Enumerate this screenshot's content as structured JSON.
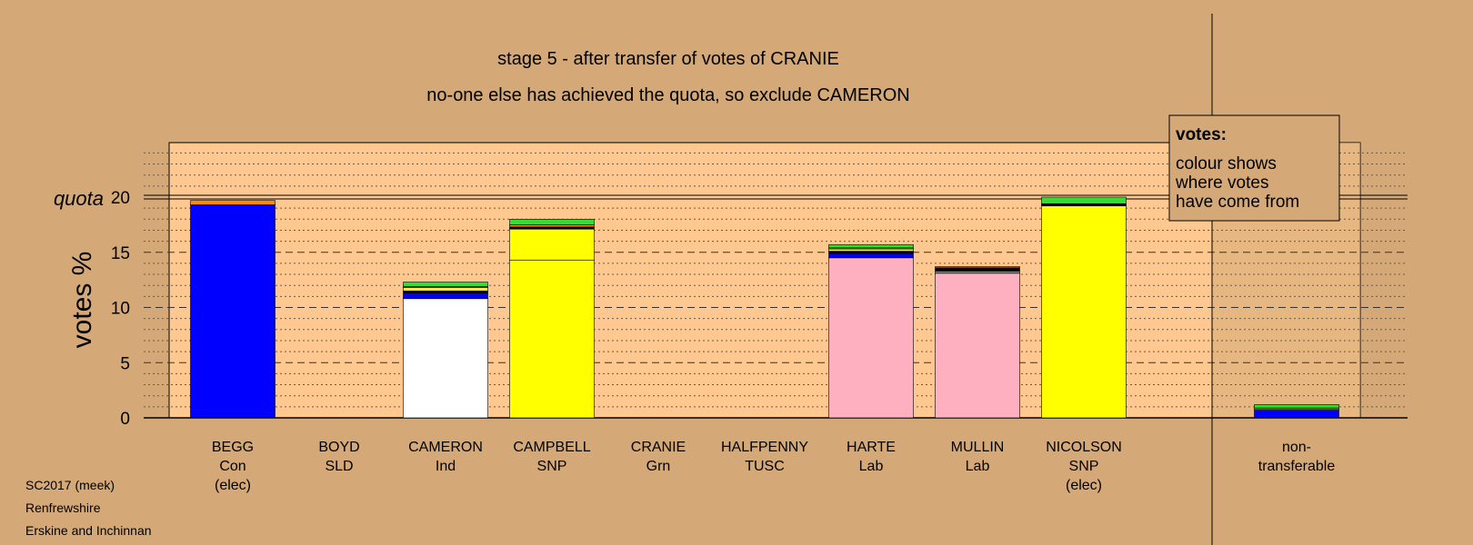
{
  "chart_data": {
    "type": "bar",
    "title": "stage 5 - after transfer of votes of CRANIE",
    "subtitle": "no-one else has achieved the quota, so exclude CAMERON",
    "ylabel": "votes %",
    "ylim": [
      0,
      25
    ],
    "yticks": [
      0,
      5,
      10,
      15,
      20
    ],
    "quota": 20,
    "quota_label": "quota",
    "legend": {
      "title": "votes:",
      "lines": [
        "colour shows",
        "where votes",
        "have come from"
      ],
      "position": "top-right"
    },
    "candidates": [
      {
        "name": "BEGG",
        "party": "Con",
        "status": "(elec)",
        "segments": [
          {
            "source": "BEGG",
            "color": "#0000ff",
            "value": 19.3
          },
          {
            "source": "other",
            "color": "#ff8c00",
            "value": 0.4
          }
        ]
      },
      {
        "name": "BOYD",
        "party": "SLD",
        "status": "",
        "segments": []
      },
      {
        "name": "CAMERON",
        "party": "Ind",
        "status": "",
        "segments": [
          {
            "source": "CAMERON",
            "color": "#ffffff",
            "value": 10.8
          },
          {
            "source": "BEGG",
            "color": "#0000ff",
            "value": 0.5
          },
          {
            "source": "other",
            "color": "#000000",
            "value": 0.2
          },
          {
            "source": "CAMPBELL",
            "color": "#ffff00",
            "value": 0.3
          },
          {
            "source": "other",
            "color": "#ff8c00",
            "value": 0.1
          },
          {
            "source": "CRANIE",
            "color": "#33dd33",
            "value": 0.4
          }
        ]
      },
      {
        "name": "CAMPBELL",
        "party": "SNP",
        "status": "",
        "segments": [
          {
            "source": "CAMPBELL",
            "color": "#ffff00",
            "value": 14.3
          },
          {
            "source": "NICOLSON",
            "color": "#ffff00",
            "value": 2.8
          },
          {
            "source": "other",
            "color": "#000000",
            "value": 0.2
          },
          {
            "source": "other",
            "color": "#ff8c00",
            "value": 0.2
          },
          {
            "source": "CRANIE",
            "color": "#33dd33",
            "value": 0.5
          }
        ]
      },
      {
        "name": "CRANIE",
        "party": "Grn",
        "status": "",
        "segments": []
      },
      {
        "name": "HALFPENNY",
        "party": "TUSC",
        "status": "",
        "segments": []
      },
      {
        "name": "HARTE",
        "party": "Lab",
        "status": "",
        "segments": [
          {
            "source": "HARTE",
            "color": "#ffb0c0",
            "value": 14.5
          },
          {
            "source": "BEGG",
            "color": "#0000ff",
            "value": 0.4
          },
          {
            "source": "other",
            "color": "#000000",
            "value": 0.2
          },
          {
            "source": "CAMPBELL",
            "color": "#ffff00",
            "value": 0.2
          },
          {
            "source": "other",
            "color": "#ff8c00",
            "value": 0.1
          },
          {
            "source": "CRANIE",
            "color": "#33dd33",
            "value": 0.3
          }
        ]
      },
      {
        "name": "MULLIN",
        "party": "Lab",
        "status": "",
        "segments": [
          {
            "source": "MULLIN",
            "color": "#ffb0c0",
            "value": 13.1
          },
          {
            "source": "other",
            "color": "#888888",
            "value": 0.2
          },
          {
            "source": "other",
            "color": "#000000",
            "value": 0.3
          },
          {
            "source": "other",
            "color": "#ff8c00",
            "value": 0.1
          }
        ]
      },
      {
        "name": "NICOLSON",
        "party": "SNP",
        "status": "(elec)",
        "segments": [
          {
            "source": "NICOLSON",
            "color": "#ffff00",
            "value": 19.2
          },
          {
            "source": "other",
            "color": "#000000",
            "value": 0.2
          },
          {
            "source": "CRANIE",
            "color": "#33dd33",
            "value": 0.6
          }
        ]
      }
    ],
    "nontransferable": {
      "label_lines": [
        "non-",
        "transferable"
      ],
      "segments": [
        {
          "source": "BEGG",
          "color": "#0000ff",
          "value": 0.7
        },
        {
          "source": "other",
          "color": "#ffff00",
          "value": 0.1
        },
        {
          "source": "other",
          "color": "#ff8c00",
          "value": 0.1
        },
        {
          "source": "CRANIE",
          "color": "#33dd33",
          "value": 0.3
        }
      ]
    }
  },
  "footer": {
    "line1": "SC2017 (meek)",
    "line2": "Renfrewshire",
    "line3": "Erskine and Inchinnan"
  }
}
